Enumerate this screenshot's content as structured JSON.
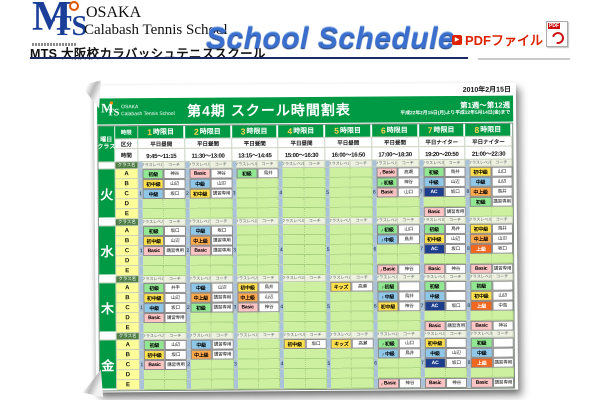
{
  "header": {
    "logo": {
      "m": "M",
      "ts": "TS",
      "line1": "OSAKA",
      "line2": "Calabash Tennis School",
      "subtitle": "MTS 大阪校カラバッシュテニススクール"
    },
    "title": "School Schedule",
    "pdf": {
      "bullet": "▶",
      "label": "PDFファイル",
      "icon_label": "PDF"
    }
  },
  "sheet": {
    "date": "2010年2月15日",
    "banner": {
      "logo_m": "M",
      "logo_ts": "TS",
      "logo_line1": "OSAKA",
      "logo_line2": "Calabash Tennis School",
      "title": "第4期 スクール時間割表",
      "weeks": "第1週〜第12週",
      "range": "平成22年2月15日(月)より平成22年5月14日(金)まで"
    },
    "table": {
      "labels": {
        "corner_top": "曜日",
        "corner_bottom": "クラス",
        "period_row": "時限",
        "category_row": "区分",
        "time_row": "時間",
        "class_name": "クラス名",
        "level_sub": "クラスレベル",
        "coach_sub": "コーチ"
      },
      "icons": {
        "junior": "♪"
      },
      "periods": [
        {
          "n": "1",
          "t": "時限目"
        },
        {
          "n": "2",
          "t": "時限目"
        },
        {
          "n": "3",
          "t": "時限目"
        },
        {
          "n": "4",
          "t": "時限目"
        },
        {
          "n": "5",
          "t": "時限目"
        },
        {
          "n": "6",
          "t": "時限目"
        },
        {
          "n": "7",
          "t": "時限目"
        },
        {
          "n": "8",
          "t": "時限目"
        }
      ],
      "categories": [
        "平日昼間",
        "平日昼間",
        "平日昼間",
        "平日昼間",
        "平日昼間",
        "平日昼間",
        "平日ナイター",
        "平日ナイター"
      ],
      "times": [
        "9:45〜11:15",
        "11:30〜13:00",
        "13:15〜14:45",
        "15:00〜16:30",
        "16:00〜16:50",
        "17:00〜18:30",
        "19:20〜20:50",
        "21:00〜22:30"
      ],
      "court_numbers": [
        "1",
        "2",
        "3",
        "4",
        "5",
        "6",
        "7",
        "8"
      ],
      "level_styles": {
        "初級": {
          "bg": "#92e792",
          "fg": "#000000"
        },
        "初中級": {
          "bg": "#ffe14d",
          "fg": "#000000"
        },
        "中級": {
          "bg": "#8fc7e8",
          "fg": "#000000"
        },
        "中上級": {
          "bg": "#ffa94d",
          "fg": "#000000"
        },
        "上級": {
          "bg": "#f2671f",
          "fg": "#ffffff"
        },
        "Basic": {
          "bg": "#ffc4c4",
          "fg": "#000000"
        },
        "AC": {
          "bg": "#1d3e8c",
          "fg": "#ffffff"
        },
        "キッズ": {
          "bg": "#ffe14d",
          "fg": "#000000"
        }
      },
      "days": [
        {
          "name": "火",
          "rows": [
            {
              "label": "A",
              "cells": [
                {
                  "lv": "初級",
                  "co": "神谷"
                },
                {
                  "lv": "Basic",
                  "co": "神谷"
                },
                {
                  "lv": "初級",
                  "co": "鳥井"
                },
                null,
                null,
                {
                  "lv": "Basic",
                  "co": "高瀬",
                  "jr": true
                },
                {
                  "lv": "初級",
                  "co": "鳥井"
                },
                {
                  "lv": "初中級",
                  "co": "山口"
                }
              ]
            },
            {
              "label": "B",
              "cells": [
                {
                  "lv": "初中級",
                  "co": "山辺"
                },
                {
                  "lv": "中級",
                  "co": "山辺"
                },
                null,
                null,
                null,
                {
                  "lv": "初級",
                  "co": "神谷",
                  "jr": true
                },
                {
                  "lv": "中級",
                  "co": "山辺"
                },
                {
                  "lv": "中級",
                  "co": "山辺"
                }
              ]
            },
            {
              "label": "C",
              "cells": [
                {
                  "lv": "中級",
                  "co": "坂口"
                },
                {
                  "lv": "初中級",
                  "co": "講習専用"
                },
                null,
                null,
                null,
                {
                  "lv": "Basic",
                  "co": "山口"
                },
                {
                  "lv": "AC",
                  "co": "坂口"
                },
                {
                  "lv": "中上級",
                  "co": "鳥井"
                }
              ]
            },
            {
              "label": "D",
              "cells": [
                null,
                null,
                null,
                null,
                null,
                null,
                null,
                {
                  "lv": "初級",
                  "co": "講習専用"
                }
              ]
            },
            {
              "label": "E",
              "cells": [
                null,
                null,
                null,
                null,
                null,
                null,
                {
                  "lv": "Basic",
                  "co": "講習専用"
                },
                null
              ]
            }
          ]
        },
        {
          "name": "水",
          "rows": [
            {
              "label": "A",
              "cells": [
                {
                  "lv": "初級",
                  "co": "坂口"
                },
                {
                  "lv": "中級",
                  "co": "坂口"
                },
                null,
                null,
                null,
                {
                  "lv": "初級",
                  "co": "山口",
                  "jr": true
                },
                {
                  "lv": "初級",
                  "co": "鳥井"
                },
                {
                  "lv": "初中級",
                  "co": "鳥井"
                }
              ]
            },
            {
              "label": "B",
              "cells": [
                {
                  "lv": "初中級",
                  "co": "山辺"
                },
                {
                  "lv": "中上級",
                  "co": "講習専用"
                },
                null,
                null,
                null,
                {
                  "lv": "中級",
                  "co": "鳥井",
                  "jr": true
                },
                {
                  "lv": "初中級",
                  "co": "山辺"
                },
                {
                  "lv": "中上級",
                  "co": "山辺"
                }
              ]
            },
            {
              "label": "C",
              "cells": [
                {
                  "lv": "Basic",
                  "co": "講習専用"
                },
                {
                  "lv": "Basic",
                  "co": "講習専用"
                },
                null,
                null,
                null,
                null,
                {
                  "lv": "AC",
                  "co": "坂口"
                },
                {
                  "lv": "上級",
                  "co": "坂口"
                }
              ]
            },
            {
              "label": "D",
              "cells": [
                null,
                null,
                null,
                null,
                null,
                null,
                null,
                null
              ]
            },
            {
              "label": "E",
              "cells": [
                null,
                null,
                null,
                null,
                null,
                {
                  "lv": "Basic",
                  "co": "神谷",
                  "jr": true
                },
                {
                  "lv": "Basic",
                  "co": "神谷"
                },
                {
                  "lv": "Basic",
                  "co": "講習専用"
                }
              ]
            }
          ]
        },
        {
          "name": "木",
          "rows": [
            {
              "label": "A",
              "cells": [
                {
                  "lv": "初級",
                  "co": "井手"
                },
                {
                  "lv": "中級",
                  "co": "山辺"
                },
                {
                  "lv": "初中級",
                  "co": "鳥井"
                },
                null,
                {
                  "lv": "キッズ",
                  "co": "高瀬"
                },
                {
                  "lv": "初級",
                  "co": "",
                  "jr": true
                },
                {
                  "lv": "初級",
                  "co": ""
                },
                {
                  "lv": "初級",
                  "co": ""
                }
              ]
            },
            {
              "label": "B",
              "cells": [
                {
                  "lv": "初中級",
                  "co": "山辺"
                },
                {
                  "lv": "中上級",
                  "co": "講習専用"
                },
                {
                  "lv": "中上級",
                  "co": "山辺"
                },
                null,
                null,
                {
                  "lv": "中級",
                  "co": "鳥井",
                  "jr": true
                },
                {
                  "lv": "中級",
                  "co": ""
                },
                {
                  "lv": "初中級",
                  "co": "山辺"
                }
              ]
            },
            {
              "label": "C",
              "cells": [
                {
                  "lv": "中級",
                  "co": "坂口"
                },
                {
                  "lv": "初級",
                  "co": "講習専用"
                },
                {
                  "lv": "Basic",
                  "co": "神谷"
                },
                null,
                null,
                {
                  "lv": "初中級",
                  "co": "神谷"
                },
                {
                  "lv": "AC",
                  "co": "坂口"
                },
                {
                  "lv": "上級",
                  "co": "中島"
                }
              ]
            },
            {
              "label": "D",
              "cells": [
                {
                  "lv": "Basic",
                  "co": "講習専用"
                },
                null,
                null,
                null,
                null,
                null,
                null,
                null
              ]
            },
            {
              "label": "E",
              "cells": [
                null,
                null,
                null,
                null,
                null,
                null,
                {
                  "lv": "Basic",
                  "co": "講習専用"
                },
                {
                  "lv": "Basic",
                  "co": "神谷"
                }
              ]
            }
          ]
        },
        {
          "name": "金",
          "rows": [
            {
              "label": "A",
              "cells": [
                {
                  "lv": "初級",
                  "co": "山辺"
                },
                {
                  "lv": "中級",
                  "co": "講習専用"
                },
                null,
                {
                  "lv": "初中級",
                  "co": "坂口"
                },
                {
                  "lv": "キッズ",
                  "co": "高瀬"
                },
                {
                  "lv": "初級",
                  "co": "山口",
                  "jr": true
                },
                {
                  "lv": "初中級",
                  "co": ""
                },
                {
                  "lv": "初級",
                  "co": ""
                }
              ]
            },
            {
              "label": "B",
              "cells": [
                {
                  "lv": "初中級",
                  "co": "坂口"
                },
                {
                  "lv": "中上級",
                  "co": "講習専用"
                },
                null,
                null,
                null,
                {
                  "lv": "中級",
                  "co": "鳥井",
                  "jr": true
                },
                {
                  "lv": "中級",
                  "co": "山辺"
                },
                {
                  "lv": "中級",
                  "co": ""
                }
              ]
            },
            {
              "label": "C",
              "cells": [
                {
                  "lv": "Basic",
                  "co": "講習専用"
                },
                null,
                null,
                null,
                null,
                null,
                {
                  "lv": "AC",
                  "co": "坂口"
                },
                {
                  "lv": "上級",
                  "co": "講習専用"
                }
              ]
            },
            {
              "label": "D",
              "cells": [
                null,
                null,
                null,
                null,
                null,
                null,
                null,
                null
              ]
            },
            {
              "label": "E",
              "cells": [
                null,
                null,
                null,
                null,
                null,
                {
                  "lv": "Basic",
                  "co": "神谷",
                  "jr": true
                },
                {
                  "lv": "Basic",
                  "co": "神谷"
                },
                {
                  "lv": "Basic",
                  "co": "講習専用"
                }
              ]
            }
          ]
        }
      ]
    }
  },
  "colors": {
    "brand_green": "#009944",
    "accent_blue": "#3b6fce",
    "pdf_red": "#dd2200",
    "empty_cell": "#cdf0a0",
    "separator": "#a9c2d9",
    "class_column": "#ffff99"
  }
}
